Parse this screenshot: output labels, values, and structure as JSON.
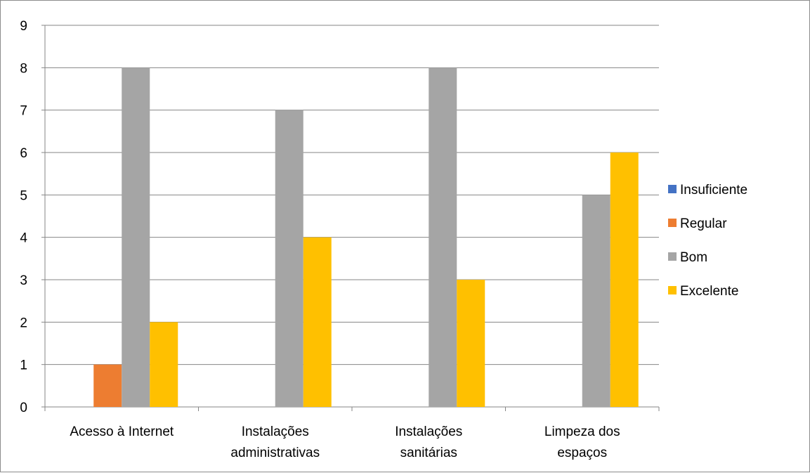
{
  "chart_data": {
    "type": "bar",
    "title": "",
    "xlabel": "",
    "ylabel": "",
    "ylim": [
      0,
      9
    ],
    "yticks": [
      "0",
      "1",
      "2",
      "3",
      "4",
      "5",
      "6",
      "7",
      "8",
      "9"
    ],
    "categories": [
      [
        "Acesso à Internet"
      ],
      [
        "Instalações",
        "administrativas"
      ],
      [
        "Instalações",
        "sanitárias"
      ],
      [
        "Limpeza dos",
        "espaços"
      ]
    ],
    "series": [
      {
        "name": "Insuficiente",
        "color": "#4472C4",
        "values": [
          0,
          0,
          0,
          0
        ]
      },
      {
        "name": "Regular",
        "color": "#ED7D31",
        "values": [
          1,
          0,
          0,
          0
        ]
      },
      {
        "name": "Bom",
        "color": "#A5A5A5",
        "values": [
          8,
          7,
          8,
          5
        ]
      },
      {
        "name": "Excelente",
        "color": "#FFC000",
        "values": [
          2,
          4,
          3,
          6
        ]
      }
    ],
    "grid": true,
    "legend_position": "right"
  }
}
